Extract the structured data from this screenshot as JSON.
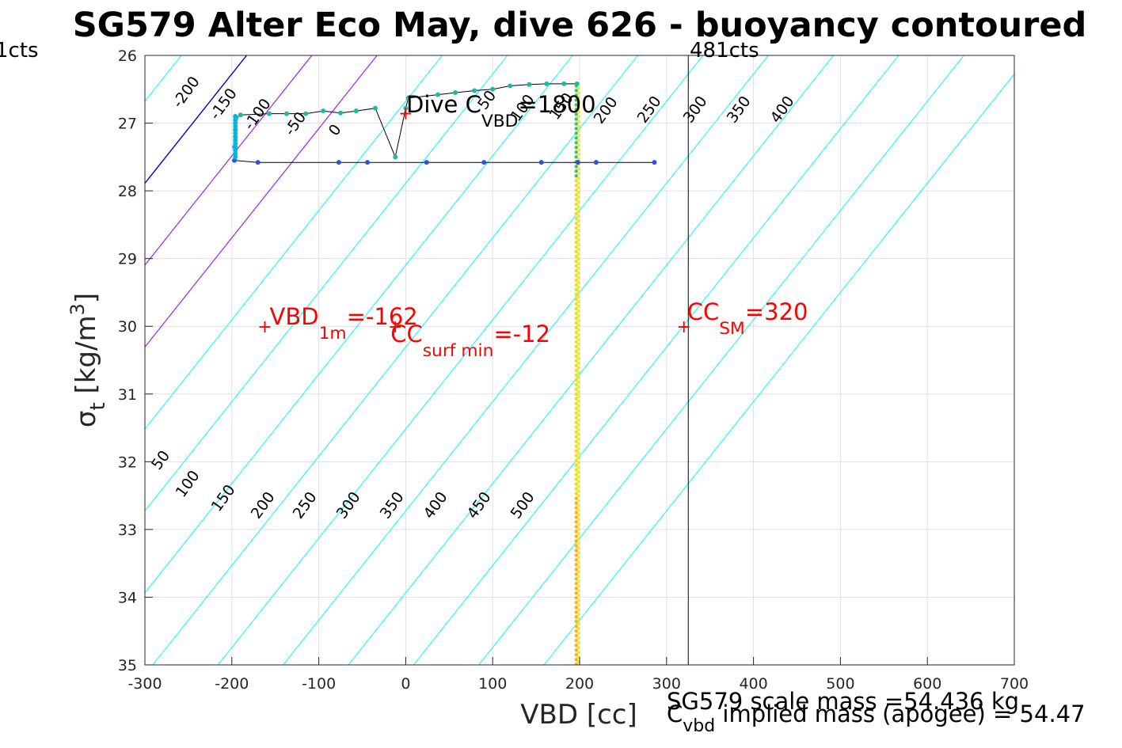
{
  "title": "SG579 Alter Eco May, dive 626 - buoyancy contoured",
  "left_cut_label": "1cts",
  "right_cts_label": "481cts",
  "colors": {
    "contour": "#00ffff",
    "zero_line": "#0000cc",
    "purple_lines": "#a020f0",
    "black": "#000000",
    "red": "#ff0000",
    "vertical_dots_orange": "#ffb020",
    "vertical_dots_yellow": "#e8e020",
    "vertical_dots_green": "#40c060"
  },
  "chart_data": {
    "type": "scatter",
    "xlabel": "VBD [cc]",
    "ylabel": "σ_t [kg/m^3]",
    "xlim": [
      -300,
      700
    ],
    "ylim": [
      35,
      26
    ],
    "y_reversed": true,
    "grid": true,
    "xticks": [
      -300,
      -200,
      -100,
      0,
      100,
      200,
      300,
      400,
      500,
      600,
      700
    ],
    "yticks": [
      26,
      27,
      28,
      29,
      30,
      31,
      32,
      33,
      34,
      35
    ],
    "contour_levels_top": [
      -200,
      -150,
      -100,
      -50,
      0,
      50,
      100,
      150,
      200,
      250,
      300,
      350,
      400,
      450,
      500
    ],
    "contour_levels_bottom": [
      50,
      100,
      150,
      200,
      250,
      300,
      350,
      400,
      450,
      500
    ],
    "contour_slope_cc_per_sigma": 62,
    "contour_zero_x_at_sigma27": -170,
    "vertical_line_x": 325,
    "series": [
      {
        "role": "dive",
        "color": "#3050e0",
        "points": [
          [
            -197,
            27.55
          ],
          [
            -170,
            27.58
          ],
          [
            -77,
            27.58
          ],
          [
            -44,
            27.58
          ],
          [
            24,
            27.58
          ],
          [
            90,
            27.58
          ],
          [
            156,
            27.58
          ],
          [
            198,
            27.58
          ],
          [
            219,
            27.58
          ],
          [
            286,
            27.58
          ]
        ]
      },
      {
        "role": "climb",
        "color": "#20b8a0",
        "points": [
          [
            -197,
            27.35
          ],
          [
            -196,
            27.1
          ],
          [
            -195,
            26.92
          ],
          [
            -190,
            26.88
          ],
          [
            -157,
            26.86
          ],
          [
            -137,
            26.86
          ],
          [
            -115,
            26.86
          ],
          [
            -95,
            26.82
          ],
          [
            -75,
            26.85
          ],
          [
            -57,
            26.82
          ],
          [
            -35,
            26.78
          ],
          [
            -12,
            27.5
          ],
          [
            0,
            26.78
          ],
          [
            3,
            26.63
          ],
          [
            37,
            26.58
          ],
          [
            57,
            26.55
          ],
          [
            79,
            26.52
          ],
          [
            100,
            26.5
          ],
          [
            120,
            26.45
          ],
          [
            142,
            26.43
          ],
          [
            162,
            26.42
          ],
          [
            182,
            26.42
          ],
          [
            197,
            26.42
          ]
        ]
      },
      {
        "role": "surface_cluster",
        "color": "#00b0e0",
        "points": [
          [
            -196,
            27.0
          ],
          [
            -196,
            27.2
          ],
          [
            -196,
            27.4
          ],
          [
            -196,
            27.5
          ]
        ]
      }
    ],
    "vertical_dots_x": 197,
    "annotations": [
      {
        "text_main": "VBD",
        "text_sub": "1m",
        "text_tail": "=-162",
        "x": -162,
        "y": 30.0
      },
      {
        "text_main": "CC",
        "text_sub": "surf min",
        "text_tail": "=-12",
        "x": -12,
        "y": 30.0
      },
      {
        "text_main": "CC",
        "text_sub": "SM",
        "text_tail": "=320",
        "x": 320,
        "y": 30.0
      },
      {
        "text_main": "Dive C",
        "text_sub": "VBD",
        "text_tail": "=1800",
        "x": 0,
        "y": 26.85
      }
    ],
    "footer_line1": "SG579 scale mass =54.436 kg",
    "footer_line2_main": "C",
    "footer_line2_sub": "vbd",
    "footer_line2_tail": " implied mass (apogee) = 54.47"
  }
}
